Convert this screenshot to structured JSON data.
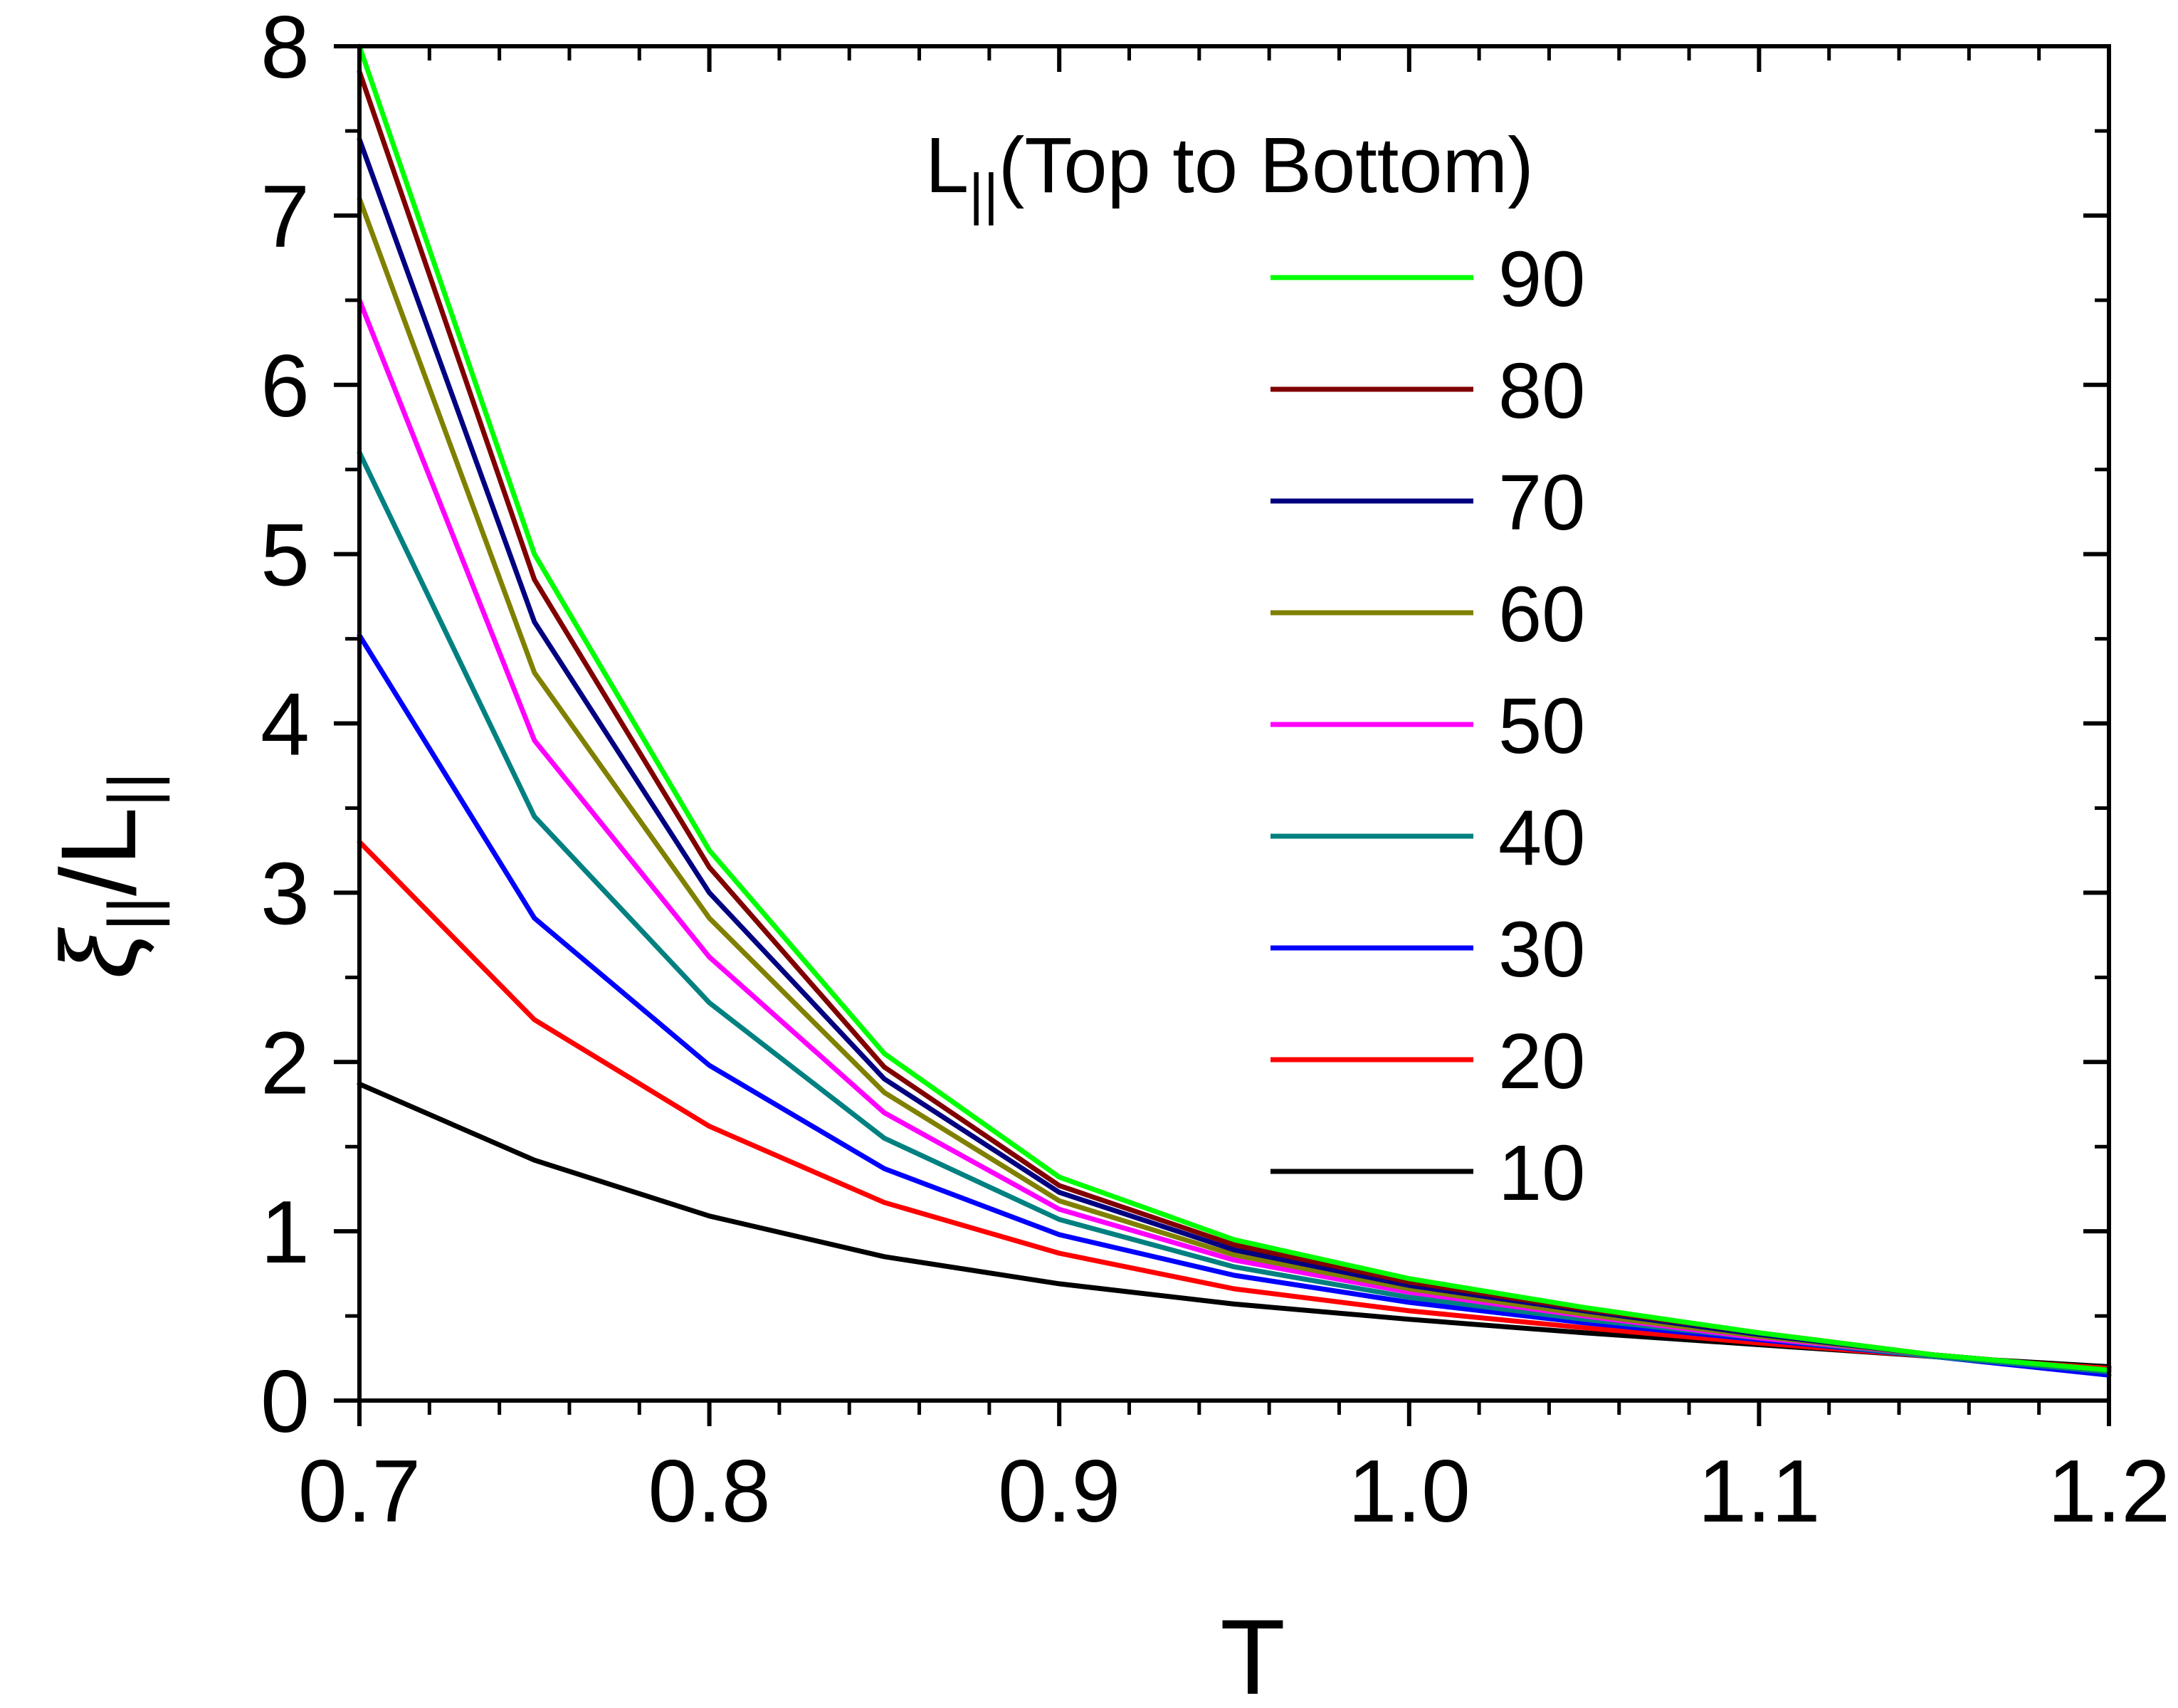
{
  "chart_data": {
    "type": "line",
    "title": "",
    "xlabel": "T",
    "ylabel": {
      "main": "ξ",
      "main_sub": "||",
      "slash": "/L",
      "slash_sub": "||"
    },
    "xlim": [
      0.7,
      1.2
    ],
    "ylim": [
      0,
      8
    ],
    "x_ticks": [
      "0.7",
      "0.8",
      "0.9",
      "1.0",
      "1.1",
      "1.2"
    ],
    "y_ticks": [
      "0",
      "1",
      "2",
      "3",
      "4",
      "5",
      "6",
      "7",
      "8"
    ],
    "grid": false,
    "legend": {
      "title": "L",
      "title_sub": "||",
      "title_suffix": "(Top to Bottom)",
      "placement": "top-right"
    },
    "x": [
      0.7,
      0.75,
      0.8,
      0.85,
      0.9,
      0.95,
      1.0,
      1.05,
      1.1,
      1.15,
      1.2
    ],
    "series": [
      {
        "name": "90",
        "color": "#00ff00",
        "values": [
          8.0,
          5.0,
          3.25,
          2.05,
          1.32,
          0.95,
          0.72,
          0.55,
          0.4,
          0.27,
          0.18
        ]
      },
      {
        "name": "80",
        "color": "#800000",
        "values": [
          7.85,
          4.85,
          3.15,
          1.97,
          1.27,
          0.92,
          0.7,
          0.54,
          0.4,
          0.27,
          0.18
        ]
      },
      {
        "name": "70",
        "color": "#000080",
        "values": [
          7.45,
          4.6,
          3.0,
          1.9,
          1.23,
          0.89,
          0.68,
          0.53,
          0.39,
          0.27,
          0.18
        ]
      },
      {
        "name": "60",
        "color": "#808000",
        "values": [
          7.1,
          4.3,
          2.85,
          1.82,
          1.18,
          0.86,
          0.66,
          0.51,
          0.38,
          0.27,
          0.18
        ]
      },
      {
        "name": "50",
        "color": "#ff00ff",
        "values": [
          6.5,
          3.9,
          2.62,
          1.7,
          1.13,
          0.83,
          0.64,
          0.5,
          0.37,
          0.27,
          0.18
        ]
      },
      {
        "name": "40",
        "color": "#008080",
        "values": [
          5.6,
          3.45,
          2.35,
          1.55,
          1.07,
          0.79,
          0.61,
          0.48,
          0.37,
          0.26,
          0.17
        ]
      },
      {
        "name": "30",
        "color": "#0000ff",
        "values": [
          4.52,
          2.85,
          1.98,
          1.37,
          0.98,
          0.74,
          0.58,
          0.46,
          0.36,
          0.26,
          0.15
        ]
      },
      {
        "name": "20",
        "color": "#ff0000",
        "values": [
          3.3,
          2.25,
          1.62,
          1.17,
          0.87,
          0.66,
          0.53,
          0.43,
          0.34,
          0.26,
          0.19
        ]
      },
      {
        "name": "10",
        "color": "#000000",
        "values": [
          1.87,
          1.42,
          1.09,
          0.85,
          0.69,
          0.57,
          0.48,
          0.4,
          0.33,
          0.26,
          0.2
        ]
      }
    ]
  }
}
